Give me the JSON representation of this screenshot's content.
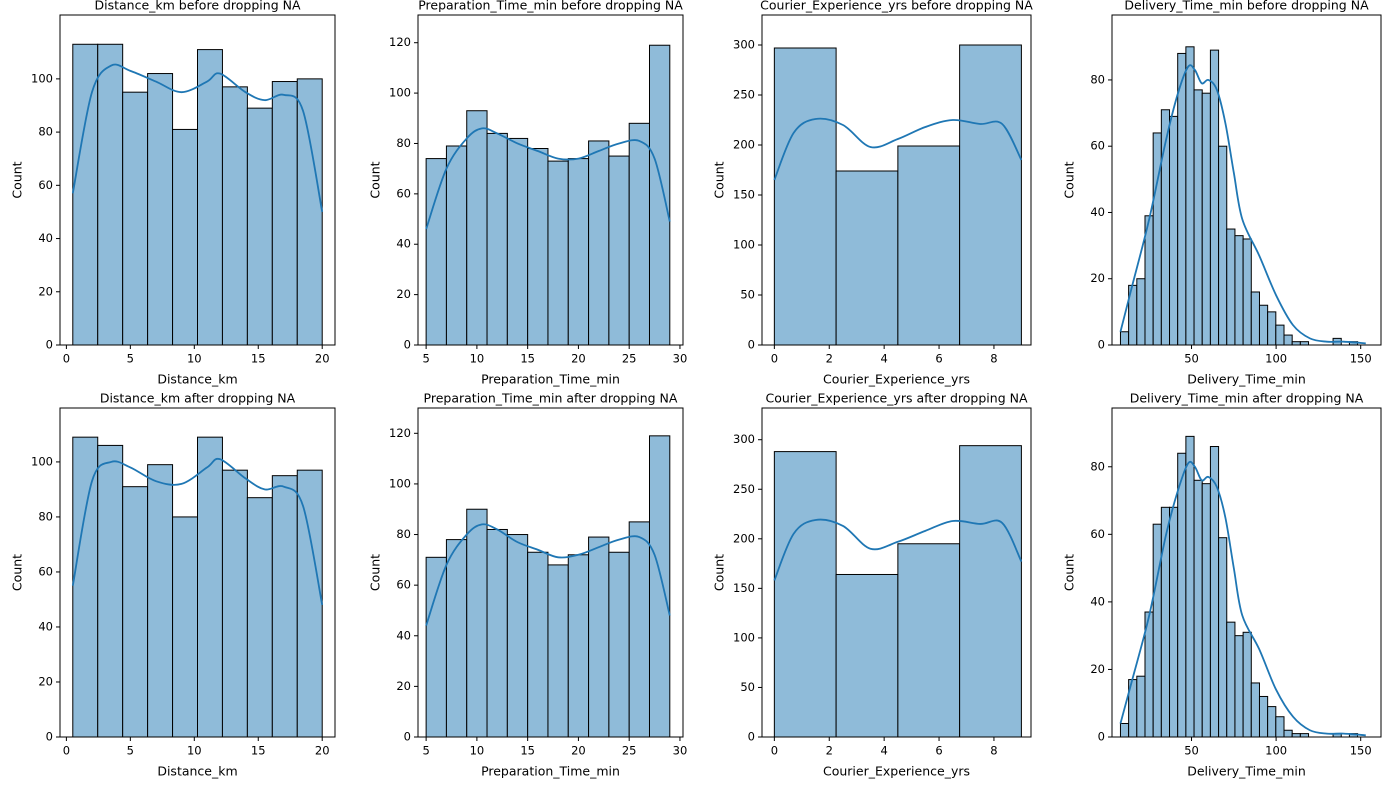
{
  "chart_data": [
    {
      "type": "histogram",
      "title": "Distance_km before dropping NA",
      "xlabel": "Distance_km",
      "ylabel": "Count",
      "bins": [
        0.5,
        2.45,
        4.4,
        6.35,
        8.3,
        10.25,
        12.2,
        14.15,
        16.1,
        18.05,
        20
      ],
      "values": [
        113,
        113,
        95,
        102,
        81,
        111,
        97,
        89,
        99,
        100
      ],
      "kde": {
        "x": [
          0.5,
          2,
          3.5,
          5,
          7,
          9,
          11,
          12,
          14,
          15.5,
          17,
          18.5,
          20
        ],
        "y": [
          57,
          95,
          105,
          103,
          99,
          95,
          99,
          102,
          95,
          92,
          94,
          88,
          50
        ]
      },
      "color": "#8fbbd9",
      "edgecolor": "#000000",
      "line_color": "#1f77b4",
      "xlim": [
        -0.5,
        21
      ],
      "xticks": [
        0,
        5,
        10,
        15,
        20
      ],
      "ylim": [
        0,
        124
      ],
      "yticks": [
        0,
        20,
        40,
        60,
        80,
        100
      ]
    },
    {
      "type": "histogram",
      "title": "Preparation_Time_min before dropping NA",
      "xlabel": "Preparation_Time_min",
      "ylabel": "Count",
      "bins": [
        5,
        7,
        9,
        11,
        13,
        15,
        17,
        19,
        21,
        23,
        25,
        27,
        29
      ],
      "values": [
        74,
        79,
        93,
        84,
        82,
        78,
        73,
        74,
        81,
        75,
        88,
        119
      ],
      "kde": {
        "x": [
          5,
          7,
          9,
          10.5,
          12,
          14,
          16,
          18,
          20,
          22,
          24,
          26,
          27.5,
          29
        ],
        "y": [
          46,
          70,
          82,
          86,
          84,
          80,
          77,
          74,
          74,
          77,
          80,
          81,
          74,
          49
        ]
      },
      "color": "#8fbbd9",
      "edgecolor": "#000000",
      "line_color": "#1f77b4",
      "xlim": [
        4.2,
        30.3
      ],
      "xticks": [
        5,
        10,
        15,
        20,
        25,
        30
      ],
      "ylim": [
        0,
        131
      ],
      "yticks": [
        0,
        20,
        40,
        60,
        80,
        100,
        120
      ]
    },
    {
      "type": "histogram",
      "title": "Courier_Experience_yrs before dropping NA",
      "xlabel": "Courier_Experience_yrs",
      "ylabel": "Count",
      "bins": [
        0,
        2.25,
        4.5,
        6.75,
        9
      ],
      "values": [
        297,
        174,
        199,
        300
      ],
      "kde": {
        "x": [
          0,
          0.7,
          1.5,
          2.5,
          3.5,
          4.5,
          5.5,
          6.5,
          7.5,
          8.3,
          9
        ],
        "y": [
          165,
          212,
          226,
          220,
          198,
          206,
          218,
          225,
          221,
          221,
          185
        ]
      },
      "color": "#8fbbd9",
      "edgecolor": "#000000",
      "line_color": "#1f77b4",
      "xlim": [
        -0.45,
        9.35
      ],
      "xticks": [
        0,
        2,
        4,
        6,
        8
      ],
      "ylim": [
        0,
        330
      ],
      "yticks": [
        0,
        50,
        100,
        150,
        200,
        250,
        300
      ]
    },
    {
      "type": "histogram",
      "title": "Delivery_Time_min before dropping NA",
      "xlabel": "Delivery_Time_min",
      "ylabel": "Count",
      "bins": [
        8,
        12.83,
        17.67,
        22.5,
        27.33,
        32.17,
        37,
        41.83,
        46.67,
        51.5,
        56.33,
        61.17,
        66,
        70.83,
        75.67,
        80.5,
        85.33,
        90.17,
        95,
        99.83,
        104.67,
        109.5,
        114.33,
        119.17,
        124,
        128.83,
        133.67,
        138.5,
        143.33,
        148.17,
        153
      ],
      "values": [
        4,
        18,
        20,
        39,
        64,
        71,
        69,
        88,
        90,
        77,
        76,
        89,
        60,
        35,
        33,
        32,
        16,
        12,
        10,
        6,
        3,
        1,
        1,
        0,
        0,
        0,
        2,
        0,
        1,
        0
      ],
      "kde": {
        "x": [
          8,
          15,
          25,
          35,
          42,
          48,
          52,
          56,
          60,
          65,
          70,
          75,
          80,
          90,
          100,
          110,
          120,
          130,
          140,
          153
        ],
        "y": [
          4,
          18,
          38,
          62,
          76,
          84,
          83,
          79,
          80,
          77,
          67,
          52,
          38,
          27,
          15,
          6,
          2,
          1,
          1,
          0.5
        ]
      },
      "color": "#8fbbd9",
      "edgecolor": "#000000",
      "line_color": "#1f77b4",
      "xlim": [
        3,
        162
      ],
      "xticks": [
        50,
        100,
        150
      ],
      "ylim": [
        0,
        99.6
      ],
      "yticks": [
        0,
        20,
        40,
        60,
        80
      ]
    },
    {
      "type": "histogram",
      "title": "Distance_km after dropping NA",
      "xlabel": "Distance_km",
      "ylabel": "Count",
      "bins": [
        0.5,
        2.45,
        4.4,
        6.35,
        8.3,
        10.25,
        12.2,
        14.15,
        16.1,
        18.05,
        20
      ],
      "values": [
        109,
        106,
        91,
        99,
        80,
        109,
        97,
        87,
        95,
        97
      ],
      "kde": {
        "x": [
          0.5,
          2,
          3.5,
          5,
          7,
          9,
          11,
          12,
          14,
          15.5,
          17,
          18.5,
          20
        ],
        "y": [
          55,
          93,
          100,
          98,
          93,
          92,
          98,
          101,
          94,
          90,
          91,
          84,
          48
        ]
      },
      "color": "#8fbbd9",
      "edgecolor": "#000000",
      "line_color": "#1f77b4",
      "xlim": [
        -0.5,
        21
      ],
      "xticks": [
        0,
        5,
        10,
        15,
        20
      ],
      "ylim": [
        0,
        119.6
      ],
      "yticks": [
        0,
        20,
        40,
        60,
        80,
        100
      ]
    },
    {
      "type": "histogram",
      "title": "Preparation_Time_min after dropping NA",
      "xlabel": "Preparation_Time_min",
      "ylabel": "Count",
      "bins": [
        5,
        7,
        9,
        11,
        13,
        15,
        17,
        19,
        21,
        23,
        25,
        27,
        29
      ],
      "values": [
        71,
        78,
        90,
        82,
        80,
        73,
        68,
        72,
        79,
        73,
        85,
        119
      ],
      "kde": {
        "x": [
          5,
          7,
          9,
          10.5,
          12,
          14,
          16,
          18,
          20,
          22,
          24,
          26,
          27.5,
          29
        ],
        "y": [
          44,
          68,
          80,
          84,
          82,
          77,
          74,
          71,
          72,
          75,
          78,
          79,
          72,
          48
        ]
      },
      "color": "#8fbbd9",
      "edgecolor": "#000000",
      "line_color": "#1f77b4",
      "xlim": [
        4.2,
        30.3
      ],
      "xticks": [
        5,
        10,
        15,
        20,
        25,
        30
      ],
      "ylim": [
        0,
        130
      ],
      "yticks": [
        0,
        20,
        40,
        60,
        80,
        100,
        120
      ]
    },
    {
      "type": "histogram",
      "title": "Courier_Experience_yrs after dropping NA",
      "xlabel": "Courier_Experience_yrs",
      "ylabel": "Count",
      "bins": [
        0,
        2.25,
        4.5,
        6.75,
        9
      ],
      "values": [
        288,
        164,
        195,
        294
      ],
      "kde": {
        "x": [
          0,
          0.7,
          1.5,
          2.5,
          3.5,
          4.5,
          5.5,
          6.5,
          7.5,
          8.3,
          9
        ],
        "y": [
          158,
          205,
          219,
          213,
          190,
          197,
          208,
          218,
          215,
          216,
          177
        ]
      },
      "color": "#8fbbd9",
      "edgecolor": "#000000",
      "line_color": "#1f77b4",
      "xlim": [
        -0.45,
        9.35
      ],
      "xticks": [
        0,
        2,
        4,
        6,
        8
      ],
      "ylim": [
        0,
        332
      ],
      "yticks": [
        0,
        50,
        100,
        150,
        200,
        250,
        300
      ]
    },
    {
      "type": "histogram",
      "title": "Delivery_Time_min after dropping NA",
      "xlabel": "Delivery_Time_min",
      "ylabel": "Count",
      "bins": [
        8,
        12.83,
        17.67,
        22.5,
        27.33,
        32.17,
        37,
        41.83,
        46.67,
        51.5,
        56.33,
        61.17,
        66,
        70.83,
        75.67,
        80.5,
        85.33,
        90.17,
        95,
        99.83,
        104.67,
        109.5,
        114.33,
        119.17,
        124,
        128.83,
        133.67,
        138.5,
        143.33,
        148.17,
        153
      ],
      "values": [
        4,
        17,
        18,
        37,
        63,
        68,
        68,
        84,
        89,
        76,
        75,
        86,
        59,
        34,
        30,
        31,
        16,
        12,
        9,
        6,
        2,
        1,
        1,
        0,
        0,
        0,
        1,
        0,
        1,
        0
      ],
      "kde": {
        "x": [
          8,
          15,
          25,
          35,
          42,
          48,
          52,
          56,
          60,
          65,
          70,
          75,
          80,
          90,
          100,
          110,
          120,
          130,
          140,
          153
        ],
        "y": [
          4,
          17,
          36,
          60,
          73,
          81,
          80,
          76,
          77,
          74,
          65,
          50,
          36,
          26,
          14,
          6,
          2,
          1,
          1,
          0.5
        ]
      },
      "color": "#8fbbd9",
      "edgecolor": "#000000",
      "line_color": "#1f77b4",
      "xlim": [
        3,
        162
      ],
      "xticks": [
        50,
        100,
        150
      ],
      "ylim": [
        0,
        97.4
      ],
      "yticks": [
        0,
        20,
        40,
        60,
        80
      ]
    }
  ]
}
